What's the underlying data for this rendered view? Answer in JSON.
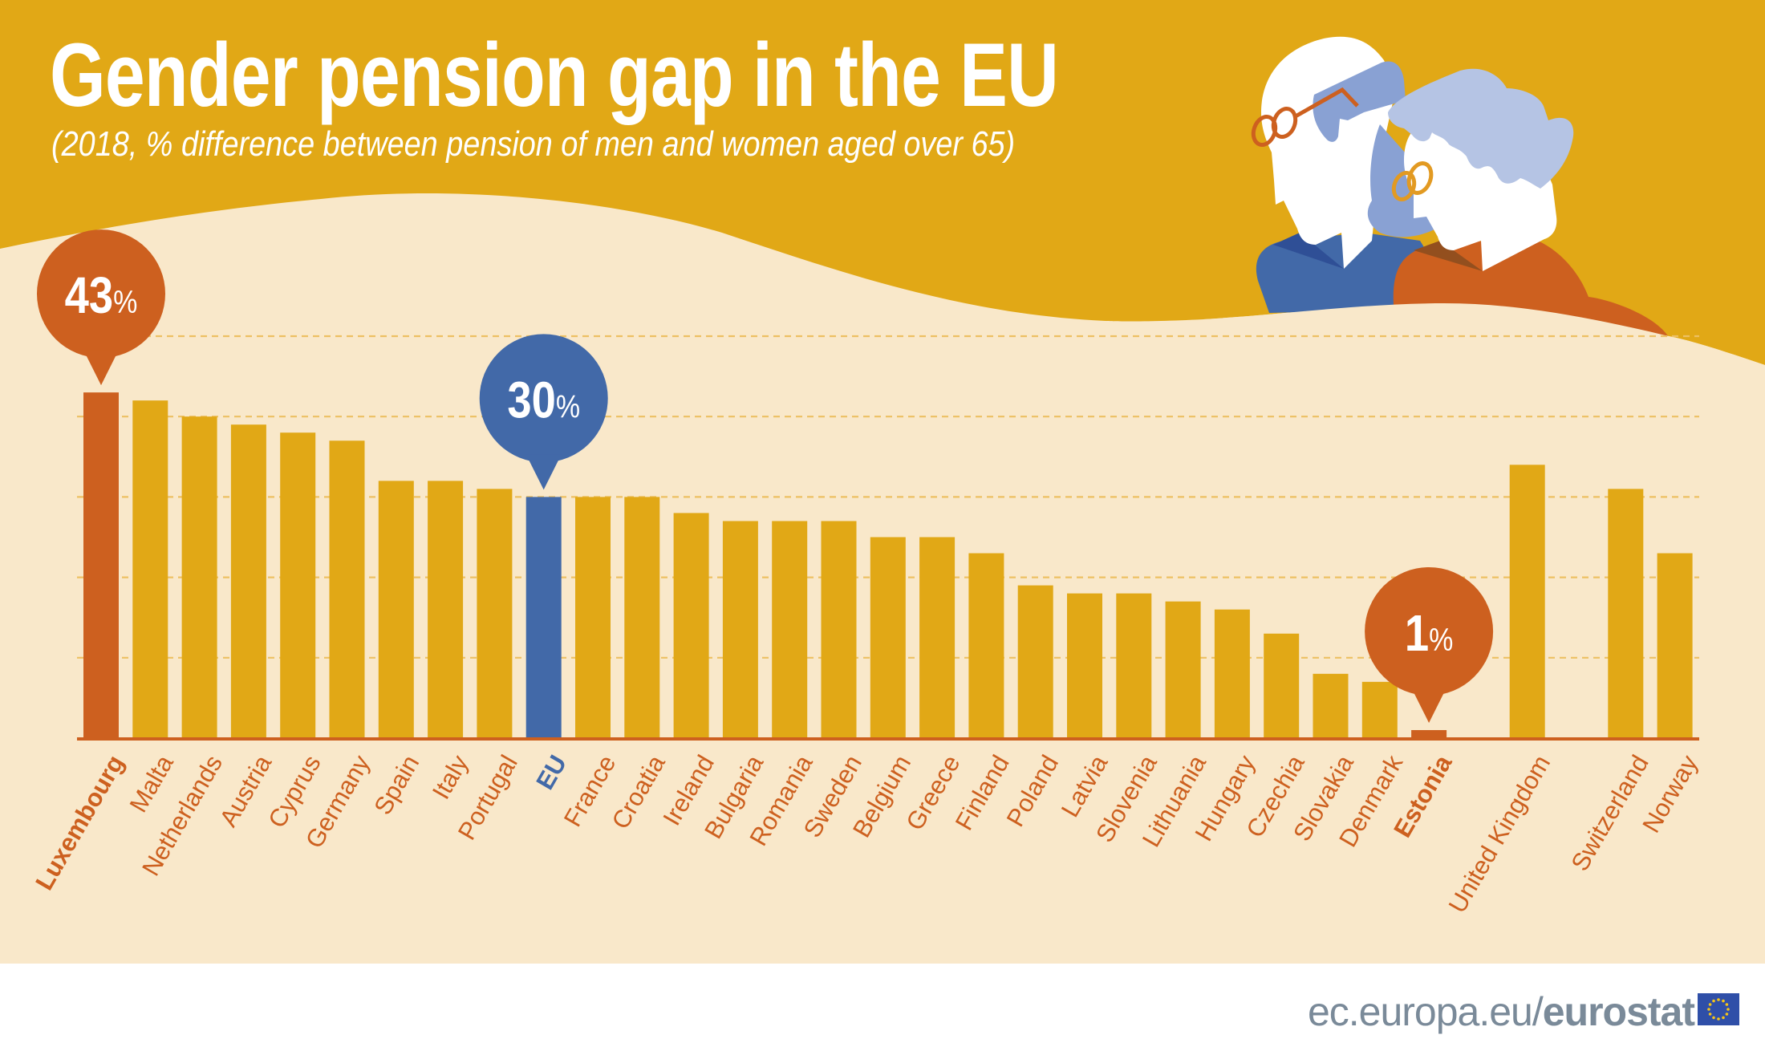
{
  "header": {
    "title": "Gender pension gap in the EU",
    "subtitle": "(2018, % difference between pension of men and women aged over 65)"
  },
  "footer": {
    "site_prefix": "ec.europa.eu/",
    "site_brand": "eurostat",
    "flag_icon": "eu-flag-icon"
  },
  "illustration": {
    "icon": "elderly-couple-illustration"
  },
  "colors": {
    "header_bg": "#E1A816",
    "chart_bg": "#F9E8CA",
    "bar_default": "#E1A816",
    "bar_highlight_extreme": "#CD601F",
    "bar_highlight_eu": "#4269A8",
    "gridline": "#EDC063",
    "axis": "#CD601F",
    "label_default": "#CD601F",
    "label_eu": "#4269A8",
    "footer_text": "#7A8A99"
  },
  "chart_data": {
    "type": "bar",
    "title": "Gender pension gap in the EU",
    "subtitle": "(2018, % difference between pension of men and women aged over 65)",
    "xlabel": "",
    "ylabel": "",
    "ylim": [
      0,
      50
    ],
    "gridlines": [
      10,
      20,
      30,
      40,
      50
    ],
    "grid": true,
    "unit": "%",
    "categories": [
      "Luxembourg",
      "Malta",
      "Netherlands",
      "Austria",
      "Cyprus",
      "Germany",
      "Spain",
      "Italy",
      "Portugal",
      "EU",
      "France",
      "Croatia",
      "Ireland",
      "Bulgaria",
      "Romania",
      "Sweden",
      "Belgium",
      "Greece",
      "Finland",
      "Poland",
      "Latvia",
      "Slovenia",
      "Lithuania",
      "Hungary",
      "Czechia",
      "Slovakia",
      "Denmark",
      "Estonia",
      "",
      "United Kingdom",
      "",
      "Switzerland",
      "Norway"
    ],
    "values": [
      43,
      42,
      40,
      39,
      38,
      37,
      32,
      32,
      31,
      30,
      30,
      30,
      28,
      27,
      27,
      27,
      25,
      25,
      23,
      19,
      18,
      18,
      17,
      16,
      13,
      8,
      7,
      1,
      null,
      34,
      null,
      31,
      23
    ],
    "highlight": {
      "Luxembourg": "extreme",
      "EU": "eu",
      "Estonia": "extreme"
    },
    "bold_labels": [
      "Luxembourg",
      "EU",
      "Estonia"
    ],
    "callouts": [
      {
        "category": "Luxembourg",
        "number": "43",
        "unit": "%",
        "style": "extreme"
      },
      {
        "category": "EU",
        "number": "30",
        "unit": "%",
        "style": "eu"
      },
      {
        "category": "Estonia",
        "number": "1",
        "unit": "%",
        "style": "extreme"
      }
    ]
  }
}
